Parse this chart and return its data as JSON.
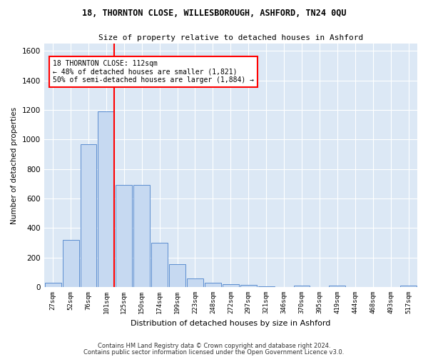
{
  "title": "18, THORNTON CLOSE, WILLESBOROUGH, ASHFORD, TN24 0QU",
  "subtitle": "Size of property relative to detached houses in Ashford",
  "xlabel": "Distribution of detached houses by size in Ashford",
  "ylabel": "Number of detached properties",
  "categories": [
    "27sqm",
    "52sqm",
    "76sqm",
    "101sqm",
    "125sqm",
    "150sqm",
    "174sqm",
    "199sqm",
    "223sqm",
    "248sqm",
    "272sqm",
    "297sqm",
    "321sqm",
    "346sqm",
    "370sqm",
    "395sqm",
    "419sqm",
    "444sqm",
    "468sqm",
    "493sqm",
    "517sqm"
  ],
  "values": [
    30,
    320,
    970,
    1190,
    690,
    690,
    300,
    155,
    60,
    30,
    20,
    15,
    5,
    0,
    10,
    0,
    10,
    0,
    0,
    0,
    10
  ],
  "bar_color": "#c6d9f1",
  "bar_edge_color": "#5b8dcf",
  "vline_x": 3.45,
  "vline_color": "red",
  "annotation_text": "18 THORNTON CLOSE: 112sqm\n← 48% of detached houses are smaller (1,821)\n50% of semi-detached houses are larger (1,884) →",
  "annotation_box_color": "white",
  "annotation_box_edge_color": "red",
  "ylim": [
    0,
    1650
  ],
  "yticks": [
    0,
    200,
    400,
    600,
    800,
    1000,
    1200,
    1400,
    1600
  ],
  "bg_color": "#dce8f5",
  "grid_color": "white",
  "footer1": "Contains HM Land Registry data © Crown copyright and database right 2024.",
  "footer2": "Contains public sector information licensed under the Open Government Licence v3.0."
}
